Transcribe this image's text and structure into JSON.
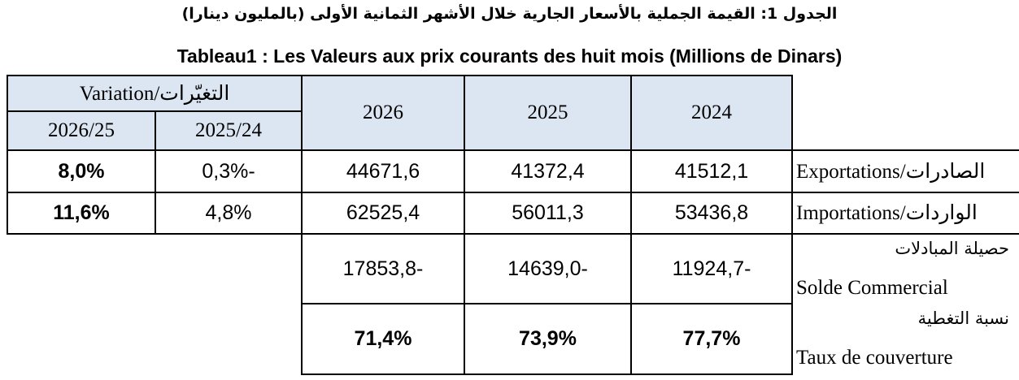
{
  "title_ar": "الجدول 1: القيمة الجملية بالأسعار الجارية خلال الأشهر الثمانية الأولى (بالمليون دينارا)",
  "title_fr": "Tableau1 : Les Valeurs aux prix courants des huit mois (Millions de Dinars)",
  "table": {
    "variation_header": "Variation/التغيّرات",
    "variation_columns": [
      "2026/25",
      "2025/24"
    ],
    "year_columns": [
      "2026",
      "2025",
      "2024"
    ],
    "rows": [
      {
        "label": "Exportations/الصادرات",
        "variation": [
          "8,0%",
          "0,3%-"
        ],
        "values": [
          "44671,6",
          "41372,4",
          "41512,1"
        ]
      },
      {
        "label": "Importations/الواردات",
        "variation": [
          "11,6%",
          "4,8%"
        ],
        "values": [
          "62525,4",
          "56011,3",
          "53436,8"
        ]
      },
      {
        "label_ar": "حصيلة المبادلات",
        "label_fr": "Solde Commercial",
        "values": [
          "17853,8-",
          "14639,0-",
          "11924,7-"
        ]
      },
      {
        "label_ar": "نسبة التغطية",
        "label_fr": "Taux de couverture",
        "values": [
          "71,4%",
          "73,9%",
          "77,7%"
        ]
      }
    ]
  }
}
